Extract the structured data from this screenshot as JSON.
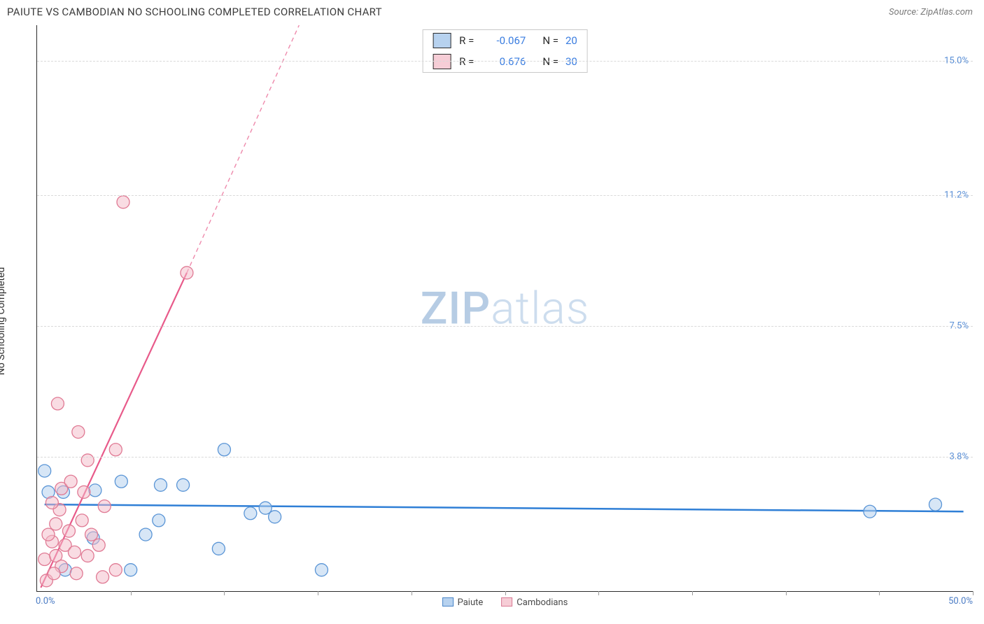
{
  "header": {
    "title": "PAIUTE VS CAMBODIAN NO SCHOOLING COMPLETED CORRELATION CHART",
    "source_label": "Source: ZipAtlas.com"
  },
  "chart": {
    "type": "scatter",
    "y_axis_label": "No Schooling Completed",
    "watermark_zip": "ZIP",
    "watermark_atlas": "atlas",
    "xlim": [
      0,
      50
    ],
    "ylim": [
      0,
      16
    ],
    "x_origin_label": "0.0%",
    "x_end_label": "50.0%",
    "y_ticks": [
      {
        "value": 3.8,
        "label": "3.8%"
      },
      {
        "value": 7.5,
        "label": "7.5%"
      },
      {
        "value": 11.2,
        "label": "11.2%"
      },
      {
        "value": 15.0,
        "label": "15.0%"
      }
    ],
    "x_tick_marks_at": [
      5,
      10,
      15,
      20,
      25,
      30,
      35,
      40,
      45,
      50
    ],
    "grid_color": "#d9d9d9",
    "background_color": "#ffffff",
    "series": {
      "paiute": {
        "label": "Paiute",
        "swatch_fill": "#b7d2ef",
        "swatch_stroke": "#4a85c8",
        "point_fill": "#b7d2ef",
        "point_fill_opacity": 0.55,
        "point_stroke": "#5a95d6",
        "point_radius": 9,
        "stat_R": "-0.067",
        "stat_N": "20",
        "trend": {
          "x1": 0.4,
          "y1": 2.45,
          "x2": 49.5,
          "y2": 2.25,
          "color": "#2f7fd6",
          "width": 2.5,
          "dash": "",
          "extend_dash": false
        },
        "points": [
          [
            0.4,
            3.4
          ],
          [
            0.6,
            2.8
          ],
          [
            1.4,
            2.8
          ],
          [
            4.5,
            3.1
          ],
          [
            6.6,
            3.0
          ],
          [
            7.8,
            3.0
          ],
          [
            10.0,
            4.0
          ],
          [
            11.4,
            2.2
          ],
          [
            5.8,
            1.6
          ],
          [
            9.7,
            1.2
          ],
          [
            12.2,
            2.35
          ],
          [
            12.7,
            2.1
          ],
          [
            15.2,
            0.6
          ],
          [
            5.0,
            0.6
          ],
          [
            1.5,
            0.6
          ],
          [
            3.1,
            2.85
          ],
          [
            44.5,
            2.25
          ],
          [
            48.0,
            2.45
          ],
          [
            3.0,
            1.5
          ],
          [
            6.5,
            2.0
          ]
        ]
      },
      "cambodians": {
        "label": "Cambodians",
        "swatch_fill": "#f6cdd6",
        "swatch_stroke": "#d97a94",
        "point_fill": "#f4b9c7",
        "point_fill_opacity": 0.5,
        "point_stroke": "#e07a94",
        "point_radius": 9,
        "stat_R": "0.676",
        "stat_N": "30",
        "trend": {
          "x1": 0.2,
          "y1": 0.1,
          "x2": 8.0,
          "y2": 9.0,
          "color": "#e85a8a",
          "width": 2.2,
          "dash": "",
          "extend_dash": true,
          "ex2": 14.0,
          "ey2": 16.0
        },
        "points": [
          [
            0.5,
            0.3
          ],
          [
            0.4,
            0.9
          ],
          [
            0.8,
            1.4
          ],
          [
            1.0,
            1.0
          ],
          [
            1.3,
            0.7
          ],
          [
            1.5,
            1.3
          ],
          [
            1.0,
            1.9
          ],
          [
            1.2,
            2.3
          ],
          [
            1.3,
            2.9
          ],
          [
            0.8,
            2.5
          ],
          [
            2.0,
            1.1
          ],
          [
            2.1,
            0.5
          ],
          [
            2.4,
            2.0
          ],
          [
            2.5,
            2.8
          ],
          [
            2.2,
            4.5
          ],
          [
            2.7,
            3.7
          ],
          [
            3.3,
            1.3
          ],
          [
            3.5,
            0.4
          ],
          [
            3.6,
            2.4
          ],
          [
            4.2,
            0.6
          ],
          [
            4.2,
            4.0
          ],
          [
            4.6,
            11.0
          ],
          [
            8.0,
            9.0
          ],
          [
            0.6,
            1.6
          ],
          [
            1.7,
            1.7
          ],
          [
            0.9,
            0.5
          ],
          [
            2.9,
            1.6
          ],
          [
            1.8,
            3.1
          ],
          [
            1.1,
            5.3
          ],
          [
            2.7,
            1.0
          ]
        ]
      }
    },
    "bottom_legend": [
      {
        "series": "paiute"
      },
      {
        "series": "cambodians"
      }
    ]
  }
}
